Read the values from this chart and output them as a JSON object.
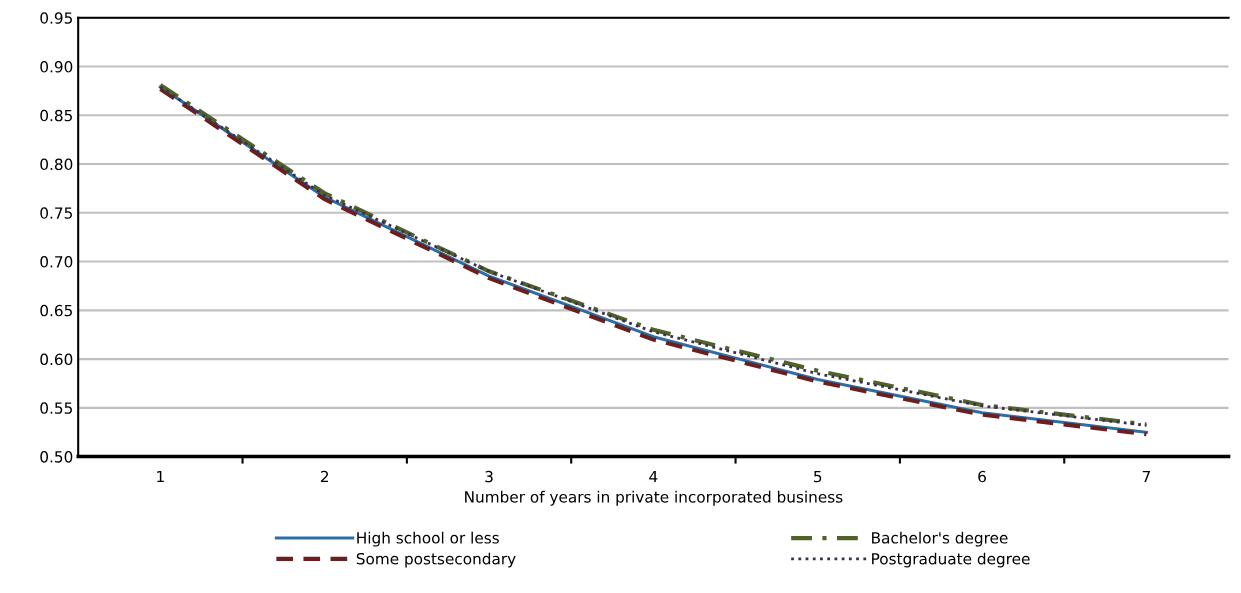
{
  "chart_data": {
    "type": "line",
    "xlabel": "Number of years in private incorporated business",
    "categories": [
      "1",
      "2",
      "3",
      "4",
      "5",
      "6",
      "7"
    ],
    "ylim": [
      0.5,
      0.95
    ],
    "yticks": [
      {
        "value": 0.5,
        "label": "0.50"
      },
      {
        "value": 0.55,
        "label": "0.55"
      },
      {
        "value": 0.6,
        "label": "0.60"
      },
      {
        "value": 0.65,
        "label": "0.65"
      },
      {
        "value": 0.7,
        "label": "0.70"
      },
      {
        "value": 0.75,
        "label": "0.75"
      },
      {
        "value": 0.8,
        "label": "0.80"
      },
      {
        "value": 0.85,
        "label": "0.85"
      },
      {
        "value": 0.9,
        "label": "0.90"
      },
      {
        "value": 0.95,
        "label": "0.95"
      }
    ],
    "grid": "y",
    "legend": "bottom",
    "marker": "none",
    "series": [
      {
        "name": "High school or less",
        "color": "#2e6ea6",
        "line_style": "solid",
        "values": [
          0.879,
          0.766,
          0.685,
          0.623,
          0.579,
          0.545,
          0.525
        ]
      },
      {
        "name": "Some postsecondary",
        "color": "#6b1f1f",
        "line_style": "dashed",
        "values": [
          0.877,
          0.764,
          0.683,
          0.62,
          0.577,
          0.543,
          0.523
        ]
      },
      {
        "name": "Bachelor's degree",
        "color": "#4f6228",
        "line_style": "dashdot",
        "values": [
          0.881,
          0.77,
          0.69,
          0.63,
          0.588,
          0.553,
          0.533
        ]
      },
      {
        "name": "Postgraduate degree",
        "color": "#3b2f5a",
        "line_style": "dotted",
        "values": [
          0.879,
          0.768,
          0.69,
          0.628,
          0.585,
          0.552,
          0.532
        ]
      }
    ]
  }
}
